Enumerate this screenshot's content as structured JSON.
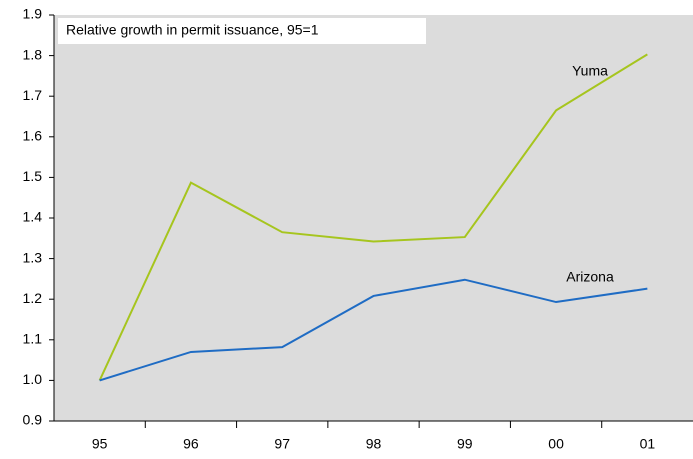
{
  "chart_data": {
    "type": "line",
    "title": "Relative growth in permit issuance, 95=1",
    "categories": [
      "95",
      "96",
      "97",
      "98",
      "99",
      "00",
      "01"
    ],
    "series": [
      {
        "name": "Yuma",
        "color": "#a6c51e",
        "values": [
          1.0,
          1.487,
          1.365,
          1.342,
          1.353,
          1.665,
          1.803
        ]
      },
      {
        "name": "Arizona",
        "color": "#1f6cc4",
        "values": [
          1.0,
          1.07,
          1.082,
          1.208,
          1.248,
          1.193,
          1.226
        ]
      }
    ],
    "ylim": [
      0.9,
      1.9
    ],
    "yticks": [
      0.9,
      {
        "value": 1,
        "label": "1.0"
      },
      1.1,
      1.2,
      1.3,
      1.4,
      1.5,
      1.6,
      1.7,
      1.8,
      1.9
    ],
    "grid": false
  }
}
